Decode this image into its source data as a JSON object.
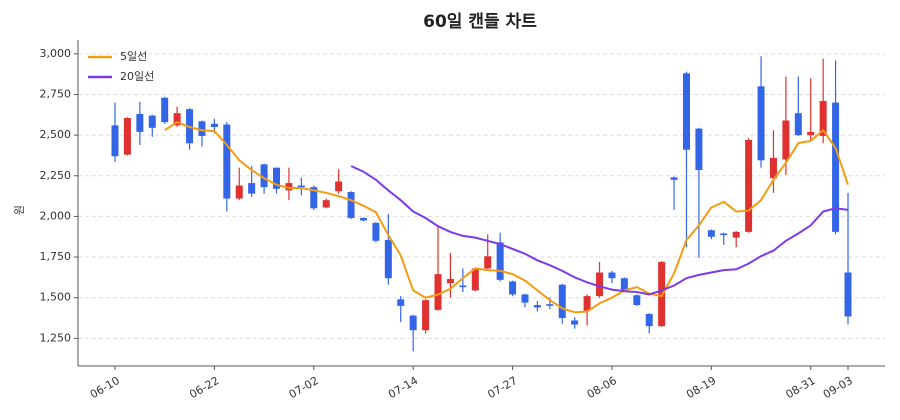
{
  "chart_data": {
    "type": "candlestick",
    "title": "60일 캔들 차트",
    "ylabel": "원",
    "categories": [
      "06-10",
      null,
      null,
      null,
      null,
      null,
      null,
      null,
      "06-22",
      null,
      null,
      null,
      null,
      null,
      null,
      null,
      "07-02",
      null,
      null,
      null,
      null,
      null,
      null,
      null,
      "07-14",
      null,
      null,
      null,
      null,
      null,
      null,
      null,
      "07-27",
      null,
      null,
      null,
      null,
      null,
      null,
      null,
      "08-06",
      null,
      null,
      null,
      null,
      null,
      null,
      null,
      "08-19",
      null,
      null,
      null,
      null,
      null,
      null,
      null,
      "08-31",
      null,
      null,
      "09-03"
    ],
    "open": [
      2560,
      2380,
      2630,
      2620,
      2730,
      2560,
      2660,
      2585,
      2570,
      2565,
      2110,
      2205,
      2320,
      2300,
      2160,
      2190,
      2180,
      2055,
      2155,
      2150,
      1990,
      1960,
      1855,
      1490,
      1390,
      1300,
      1425,
      1590,
      1575,
      1545,
      1680,
      1840,
      1600,
      1520,
      1455,
      1460,
      1580,
      1360,
      1420,
      1510,
      1655,
      1620,
      1515,
      1400,
      1325,
      2240,
      2880,
      2540,
      1915,
      1895,
      1870,
      1905,
      2800,
      2235,
      2350,
      2635,
      2500,
      2495,
      2700,
      1655
    ],
    "high": [
      2700,
      2610,
      2705,
      2625,
      2735,
      2675,
      2665,
      2590,
      2600,
      2580,
      2300,
      2310,
      2325,
      2300,
      2300,
      2240,
      2190,
      2110,
      2290,
      2155,
      1995,
      1965,
      2015,
      1510,
      1395,
      1490,
      1945,
      1775,
      1680,
      1685,
      1890,
      1900,
      1605,
      1525,
      1480,
      1500,
      1585,
      1380,
      1520,
      1720,
      1665,
      1625,
      1520,
      1405,
      1725,
      2245,
      2890,
      2545,
      1920,
      1900,
      1910,
      2480,
      2985,
      2530,
      2860,
      2860,
      2850,
      2970,
      2960,
      2145
    ],
    "low": [
      2335,
      2375,
      2440,
      2490,
      2570,
      2550,
      2410,
      2430,
      2510,
      2030,
      2100,
      2120,
      2140,
      2140,
      2100,
      2130,
      2040,
      2050,
      2140,
      1985,
      1970,
      1840,
      1580,
      1350,
      1170,
      1280,
      1420,
      1500,
      1535,
      1540,
      1670,
      1600,
      1510,
      1440,
      1415,
      1430,
      1340,
      1310,
      1330,
      1500,
      1590,
      1540,
      1450,
      1280,
      1320,
      2040,
      1810,
      1745,
      1860,
      1825,
      1810,
      1900,
      2300,
      2145,
      2255,
      2495,
      2460,
      2450,
      1890,
      1335
    ],
    "close": [
      2370,
      2605,
      2520,
      2545,
      2580,
      2635,
      2450,
      2495,
      2550,
      2110,
      2190,
      2140,
      2180,
      2170,
      2205,
      2180,
      2050,
      2100,
      2215,
      1990,
      1975,
      1850,
      1620,
      1450,
      1300,
      1485,
      1645,
      1615,
      1565,
      1680,
      1755,
      1610,
      1520,
      1470,
      1440,
      1450,
      1375,
      1335,
      1510,
      1655,
      1620,
      1545,
      1455,
      1325,
      1720,
      2225,
      2410,
      2285,
      1875,
      1885,
      1905,
      2470,
      2345,
      2360,
      2590,
      2500,
      2520,
      2710,
      1905,
      1385
    ],
    "up_color": "#e03131",
    "down_color": "#3366e6",
    "lines": [
      {
        "name": "5일선",
        "color": "#f39c12",
        "values": [
          null,
          null,
          null,
          null,
          2530,
          2580,
          2550,
          2530,
          2525,
          2440,
          2345,
          2285,
          2235,
          2195,
          2175,
          2175,
          2160,
          2145,
          2125,
          2100,
          2065,
          2025,
          1885,
          1760,
          1545,
          1500,
          1520,
          1555,
          1620,
          1680,
          1670,
          1665,
          1645,
          1605,
          1545,
          1485,
          1435,
          1410,
          1415,
          1465,
          1500,
          1545,
          1565,
          1525,
          1510,
          1650,
          1855,
          1945,
          2055,
          2090,
          2030,
          2035,
          2100,
          2225,
          2330,
          2450,
          2465,
          2530,
          2420,
          2195
        ]
      },
      {
        "name": "20일선",
        "color": "#7c3aed",
        "values": [
          null,
          null,
          null,
          null,
          null,
          null,
          null,
          null,
          null,
          null,
          null,
          null,
          null,
          null,
          null,
          null,
          null,
          null,
          null,
          2310,
          2275,
          2225,
          2160,
          2100,
          2030,
          1990,
          1940,
          1905,
          1880,
          1870,
          1850,
          1830,
          1800,
          1770,
          1730,
          1700,
          1665,
          1625,
          1595,
          1570,
          1550,
          1540,
          1535,
          1520,
          1545,
          1575,
          1620,
          1640,
          1655,
          1670,
          1675,
          1710,
          1755,
          1790,
          1850,
          1895,
          1945,
          2030,
          2050,
          2040
        ]
      }
    ],
    "ylim": [
      1080,
      3085
    ],
    "yticks": [
      {
        "value": 1250,
        "label": "1,250"
      },
      {
        "value": 1500,
        "label": "1,500"
      },
      {
        "value": 1750,
        "label": "1,750"
      },
      {
        "value": 2000,
        "label": "2,000"
      },
      {
        "value": 2250,
        "label": "2,250"
      },
      {
        "value": 2500,
        "label": "2,500"
      },
      {
        "value": 2750,
        "label": "2,750"
      },
      {
        "value": 3000,
        "label": "3,000"
      }
    ],
    "grid": true,
    "legend": "upper-left"
  }
}
